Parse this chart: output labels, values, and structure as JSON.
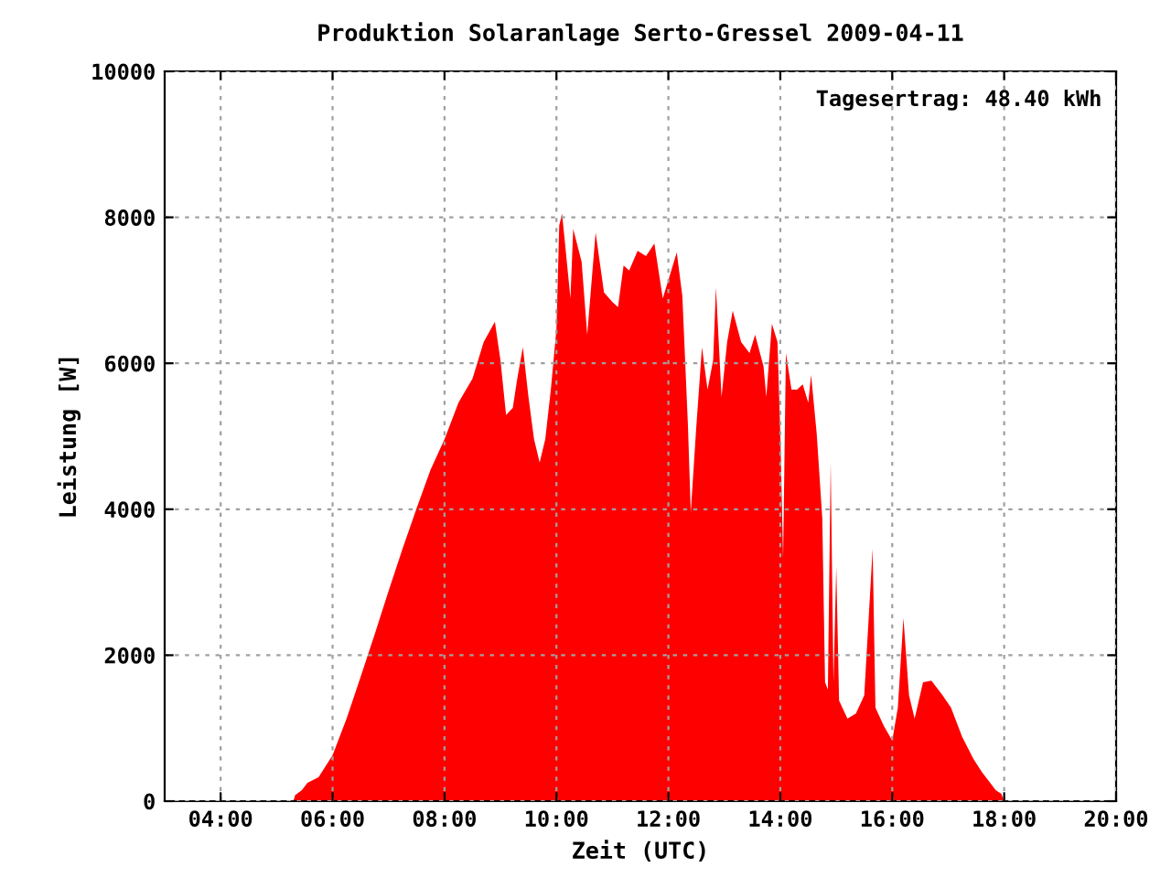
{
  "chart_data": {
    "type": "area",
    "title": "Produktion Solaranlage Serto-Gressel 2009-04-11",
    "xlabel": "Zeit (UTC)",
    "ylabel": "Leistung [W]",
    "annotations": [
      "Tagesertrag: 48.40 kWh"
    ],
    "x": [
      5.3,
      5.33,
      5.45,
      5.55,
      5.75,
      6.0,
      6.25,
      6.5,
      6.75,
      7.0,
      7.25,
      7.5,
      7.75,
      8.0,
      8.25,
      8.5,
      8.7,
      8.9,
      9.0,
      9.1,
      9.22,
      9.3,
      9.4,
      9.5,
      9.6,
      9.7,
      9.8,
      9.9,
      10.0,
      10.05,
      10.1,
      10.15,
      10.25,
      10.3,
      10.45,
      10.55,
      10.7,
      10.85,
      11.0,
      11.1,
      11.2,
      11.3,
      11.45,
      11.6,
      11.75,
      11.9,
      12.0,
      12.15,
      12.25,
      12.35,
      12.4,
      12.5,
      12.6,
      12.7,
      12.8,
      12.85,
      12.95,
      13.05,
      13.15,
      13.3,
      13.45,
      13.55,
      13.7,
      13.75,
      13.85,
      13.95,
      14.0,
      14.05,
      14.1,
      14.2,
      14.3,
      14.4,
      14.5,
      14.55,
      14.65,
      14.75,
      14.8,
      14.85,
      14.9,
      14.95,
      15.0,
      15.05,
      15.2,
      15.35,
      15.5,
      15.65,
      15.7,
      15.85,
      16.0,
      16.1,
      16.2,
      16.3,
      16.4,
      16.55,
      16.7,
      16.9,
      17.05,
      17.25,
      17.45,
      17.6,
      17.75,
      17.85,
      17.95,
      18.0
    ],
    "series": [
      {
        "color": "#ff0000",
        "values": [
          0,
          80,
          150,
          250,
          330,
          630,
          1130,
          1700,
          2280,
          2880,
          3460,
          4010,
          4540,
          4960,
          5460,
          5790,
          6290,
          6570,
          6040,
          5290,
          5390,
          5790,
          6220,
          5540,
          4960,
          4640,
          4960,
          5640,
          6470,
          7890,
          8050,
          7670,
          6890,
          7840,
          7390,
          6390,
          7790,
          6970,
          6840,
          6770,
          7340,
          7270,
          7540,
          7470,
          7640,
          6890,
          7140,
          7520,
          6920,
          5140,
          3960,
          5140,
          6220,
          5640,
          6040,
          7040,
          5540,
          6290,
          6720,
          6290,
          6140,
          6390,
          5960,
          5540,
          6540,
          6290,
          5040,
          3330,
          6140,
          5640,
          5640,
          5710,
          5460,
          5840,
          5040,
          3880,
          1630,
          1530,
          4640,
          1630,
          3210,
          1380,
          1130,
          1200,
          1450,
          3460,
          1280,
          1030,
          830,
          1280,
          2510,
          1450,
          1130,
          1630,
          1650,
          1450,
          1280,
          880,
          580,
          400,
          250,
          150,
          100,
          0
        ]
      }
    ],
    "xlim": [
      3,
      20
    ],
    "xticks": [
      {
        "value": 4,
        "label": "04:00"
      },
      {
        "value": 6,
        "label": "06:00"
      },
      {
        "value": 8,
        "label": "08:00"
      },
      {
        "value": 10,
        "label": "10:00"
      },
      {
        "value": 12,
        "label": "12:00"
      },
      {
        "value": 14,
        "label": "14:00"
      },
      {
        "value": 16,
        "label": "16:00"
      },
      {
        "value": 18,
        "label": "18:00"
      },
      {
        "value": 20,
        "label": "20:00"
      }
    ],
    "ylim": [
      0,
      10000
    ],
    "yticks": [
      0,
      2000,
      4000,
      6000,
      8000,
      10000
    ],
    "grid": true,
    "line_style": "dotted",
    "legend": false
  }
}
